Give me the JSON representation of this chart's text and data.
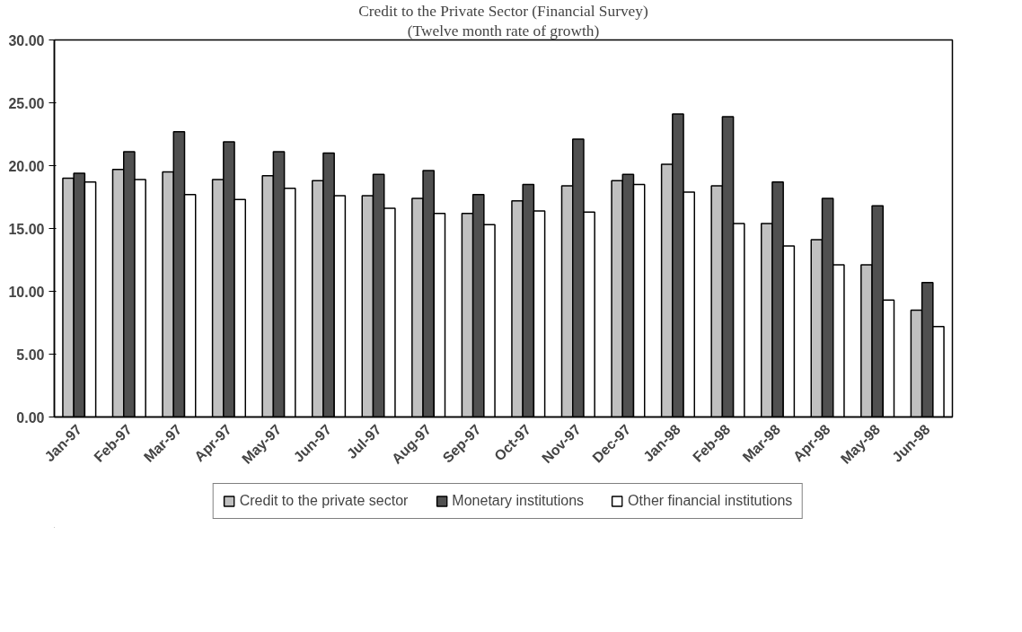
{
  "chart_data": {
    "type": "bar",
    "title": "Credit to the Private Sector (Financial Survey)",
    "subtitle": "(Twelve month rate of growth)",
    "categories": [
      "Jan-97",
      "Feb-97",
      "Mar-97",
      "Apr-97",
      "May-97",
      "Jun-97",
      "Jul-97",
      "Aug-97",
      "Sep-97",
      "Oct-97",
      "Nov-97",
      "Dec-97",
      "Jan-98",
      "Feb-98",
      "Mar-98",
      "Apr-98",
      "May-98",
      "Jun-98"
    ],
    "series": [
      {
        "name": "Credit to the private sector",
        "color": "#c0c0c0",
        "values": [
          19.0,
          19.7,
          19.5,
          18.9,
          19.2,
          18.8,
          17.6,
          17.4,
          16.2,
          17.2,
          18.4,
          18.8,
          20.1,
          18.4,
          15.4,
          14.1,
          12.1,
          8.5
        ]
      },
      {
        "name": "Monetary institutions",
        "color": "#505050",
        "values": [
          19.4,
          21.1,
          22.7,
          21.9,
          21.1,
          21.0,
          19.3,
          19.6,
          17.7,
          18.5,
          22.1,
          19.3,
          24.1,
          23.9,
          18.7,
          17.4,
          16.8,
          10.7
        ]
      },
      {
        "name": "Other financial institutions",
        "color": "#ffffff",
        "values": [
          18.7,
          18.9,
          17.7,
          17.3,
          18.2,
          17.6,
          16.6,
          16.2,
          15.3,
          16.4,
          16.3,
          18.5,
          17.9,
          15.4,
          13.6,
          12.1,
          9.3,
          7.2
        ]
      }
    ],
    "ylim": [
      0,
      30
    ],
    "yticks": [
      {
        "value": 0,
        "label": "0.00"
      },
      {
        "value": 5,
        "label": "5.00"
      },
      {
        "value": 10,
        "label": "10.00"
      },
      {
        "value": 15,
        "label": "15.00"
      },
      {
        "value": 20,
        "label": "20.00"
      },
      {
        "value": 25,
        "label": "25.00"
      },
      {
        "value": 30,
        "label": "30.00"
      }
    ],
    "grid": false,
    "legend": "bottom"
  }
}
